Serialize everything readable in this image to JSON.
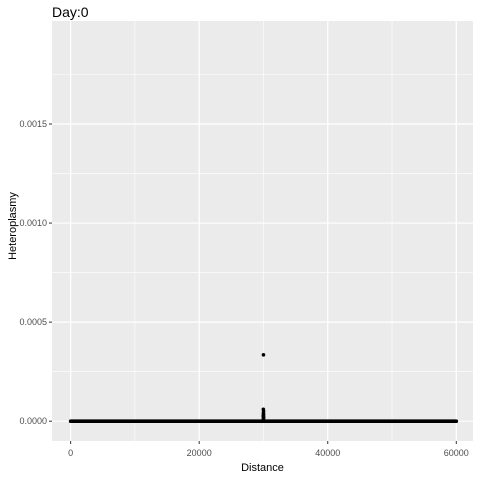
{
  "chart_data": {
    "type": "scatter",
    "title": "Day:0",
    "xlabel": "Distance",
    "ylabel": "Heteroplasmy",
    "xlim": [
      -2900,
      62600
    ],
    "ylim": [
      -0.0001,
      0.00202
    ],
    "x_ticks": [
      0,
      20000,
      40000,
      60000
    ],
    "x_tick_labels": [
      "0",
      "20000",
      "40000",
      "60000"
    ],
    "y_ticks": [
      0.0,
      0.0005,
      0.001,
      0.0015
    ],
    "y_tick_labels": [
      "0.0000",
      "0.0005",
      "0.0010",
      "0.0015"
    ],
    "grid": true,
    "background": "#ebebeb",
    "gridline_color": "#ffffff",
    "point_color": "#000000",
    "series": [
      {
        "baseline": {
          "x_range": [
            0,
            60000
          ],
          "y": 0
        },
        "points": [
          {
            "x": 30000,
            "y": 0.000335
          },
          {
            "x": 29980,
            "y": 6e-05
          },
          {
            "x": 30020,
            "y": 5e-05
          },
          {
            "x": 29990,
            "y": 4e-05
          },
          {
            "x": 30010,
            "y": 3.5e-05
          },
          {
            "x": 30000,
            "y": 3e-05
          },
          {
            "x": 29970,
            "y": 2.5e-05
          },
          {
            "x": 30030,
            "y": 2e-05
          },
          {
            "x": 30000,
            "y": 1.5e-05
          },
          {
            "x": 29990,
            "y": 1e-05
          }
        ]
      }
    ]
  }
}
